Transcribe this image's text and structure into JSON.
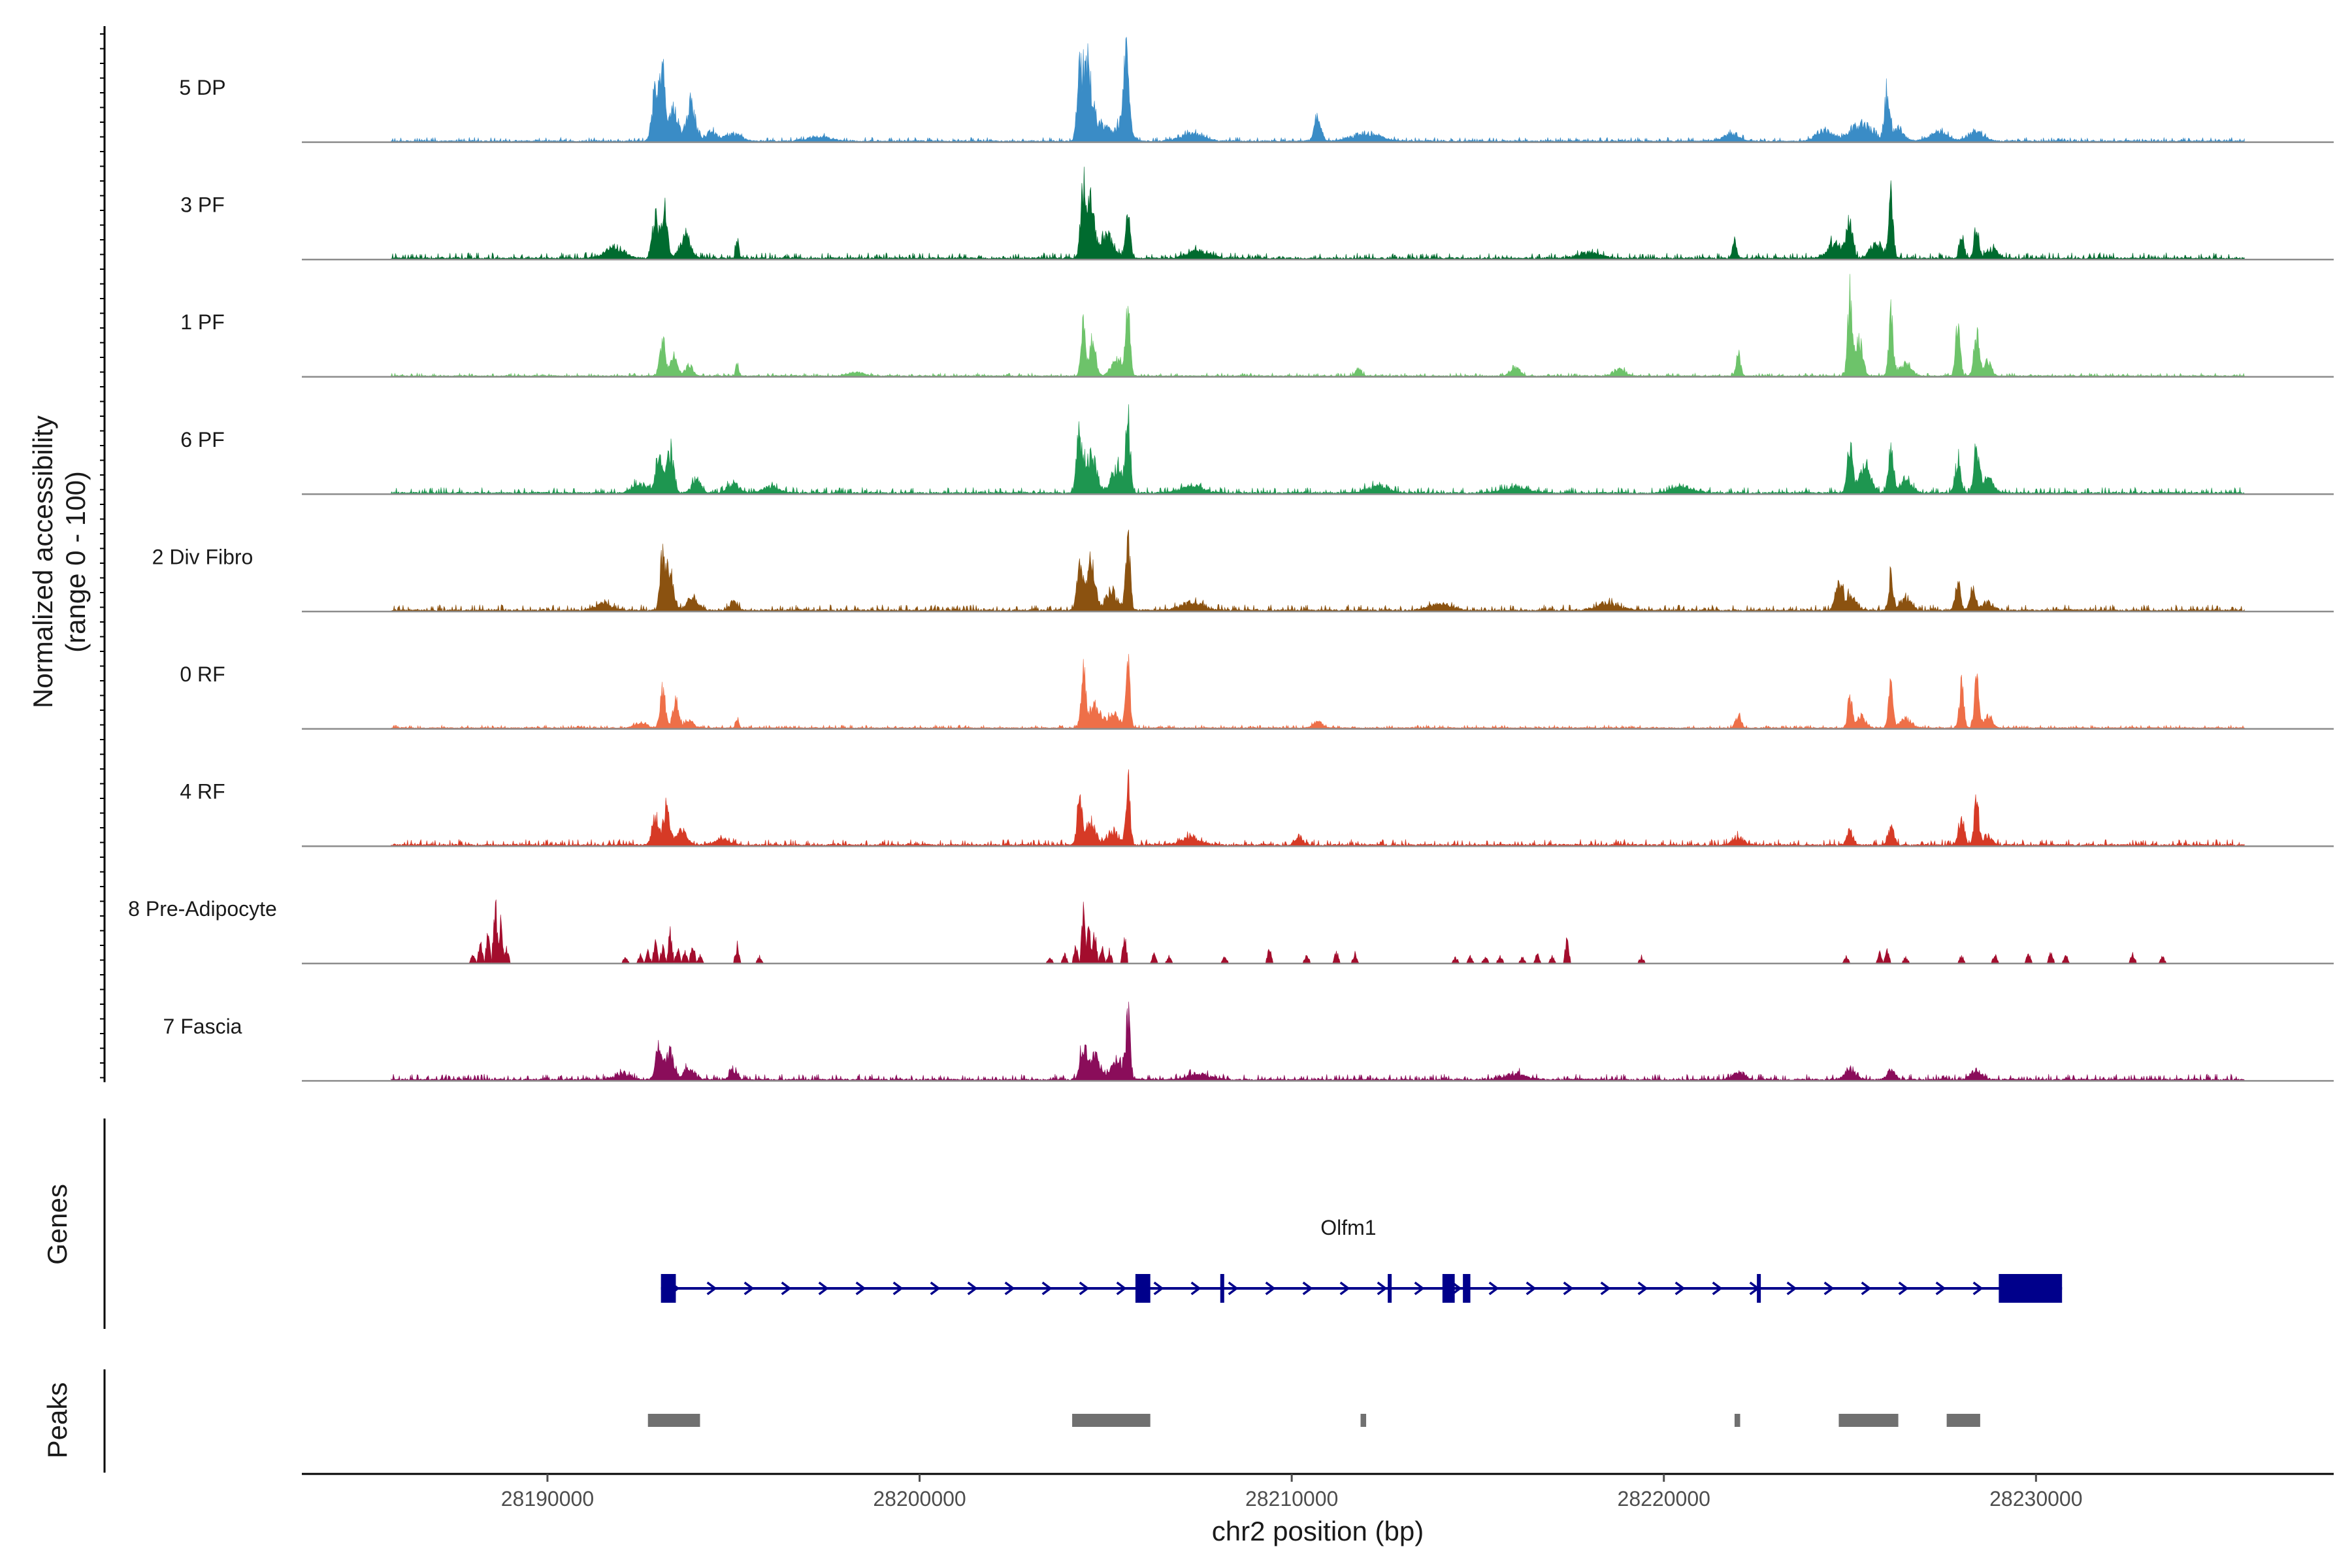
{
  "chart_data": {
    "type": "area",
    "title": "",
    "ylabel": "Normalized accessibility\n(range 0 - 100)",
    "ylabel_lines": [
      "Normalized accessibility",
      "(range 0 - 100)"
    ],
    "xlabel": "chr2 position (bp)",
    "xlim": [
      28183400,
      28238000
    ],
    "ylim": [
      0,
      100
    ],
    "x_ticks": [
      28190000,
      28200000,
      28210000,
      28220000,
      28230000
    ],
    "x_tick_labels": [
      "28190000",
      "28200000",
      "28210000",
      "28220000",
      "28230000"
    ],
    "track_labels": {
      "genes": "Genes",
      "peaks": "Peaks"
    },
    "series": [
      {
        "name": "5 DP",
        "color": "#3a8cc6",
        "noise": 2,
        "peaks": [
          [
            28192900,
            55,
            90
          ],
          [
            28193100,
            72,
            70
          ],
          [
            28193400,
            35,
            110
          ],
          [
            28193850,
            42,
            120
          ],
          [
            28194400,
            10,
            150
          ],
          [
            28195000,
            8,
            200
          ],
          [
            28197300,
            5,
            300
          ],
          [
            28204300,
            60,
            70
          ],
          [
            28204500,
            75,
            110
          ],
          [
            28204800,
            22,
            250
          ],
          [
            28205550,
            85,
            60
          ],
          [
            28205500,
            30,
            150
          ],
          [
            28207300,
            8,
            300
          ],
          [
            28210700,
            28,
            90
          ],
          [
            28212000,
            8,
            400
          ],
          [
            28221800,
            8,
            200
          ],
          [
            28224300,
            12,
            200
          ],
          [
            28225300,
            18,
            300
          ],
          [
            28226000,
            50,
            70
          ],
          [
            28226300,
            15,
            150
          ],
          [
            28227400,
            10,
            250
          ],
          [
            28228400,
            10,
            200
          ]
        ]
      },
      {
        "name": "3 PF",
        "color": "#006b2f",
        "noise": 3,
        "peaks": [
          [
            28191800,
            12,
            250
          ],
          [
            28192900,
            50,
            80
          ],
          [
            28193150,
            55,
            70
          ],
          [
            28193700,
            22,
            150
          ],
          [
            28195100,
            22,
            40
          ],
          [
            28204400,
            80,
            70
          ],
          [
            28204600,
            60,
            80
          ],
          [
            28205000,
            25,
            200
          ],
          [
            28205600,
            55,
            60
          ],
          [
            28207500,
            8,
            300
          ],
          [
            28218000,
            6,
            300
          ],
          [
            28221900,
            15,
            60
          ],
          [
            28224600,
            18,
            200
          ],
          [
            28225000,
            40,
            80
          ],
          [
            28226100,
            70,
            60
          ],
          [
            28225700,
            18,
            150
          ],
          [
            28228000,
            30,
            60
          ],
          [
            28228400,
            35,
            60
          ],
          [
            28228800,
            10,
            150
          ]
        ]
      },
      {
        "name": "1 PF",
        "color": "#6dc36a",
        "noise": 1.5,
        "peaks": [
          [
            28193100,
            35,
            80
          ],
          [
            28193400,
            25,
            90
          ],
          [
            28193800,
            12,
            100
          ],
          [
            28195100,
            15,
            40
          ],
          [
            28198300,
            4,
            200
          ],
          [
            28204400,
            55,
            60
          ],
          [
            28204650,
            40,
            80
          ],
          [
            28205600,
            65,
            60
          ],
          [
            28205300,
            18,
            150
          ],
          [
            28211800,
            8,
            80
          ],
          [
            28216000,
            10,
            120
          ],
          [
            28218800,
            8,
            150
          ],
          [
            28222000,
            25,
            60
          ],
          [
            28225000,
            85,
            60
          ],
          [
            28225250,
            40,
            90
          ],
          [
            28226100,
            65,
            60
          ],
          [
            28226500,
            15,
            150
          ],
          [
            28227900,
            60,
            60
          ],
          [
            28228400,
            45,
            70
          ],
          [
            28228700,
            15,
            100
          ]
        ]
      },
      {
        "name": "6 PF",
        "color": "#1e9650",
        "noise": 3,
        "peaks": [
          [
            28192500,
            10,
            200
          ],
          [
            28193000,
            45,
            80
          ],
          [
            28193300,
            45,
            90
          ],
          [
            28194000,
            15,
            120
          ],
          [
            28195000,
            10,
            150
          ],
          [
            28196000,
            7,
            200
          ],
          [
            28204300,
            60,
            80
          ],
          [
            28204600,
            40,
            150
          ],
          [
            28205600,
            80,
            60
          ],
          [
            28205300,
            30,
            150
          ],
          [
            28207300,
            8,
            300
          ],
          [
            28212300,
            7,
            300
          ],
          [
            28216000,
            7,
            300
          ],
          [
            28220500,
            7,
            300
          ],
          [
            28225000,
            55,
            70
          ],
          [
            28225400,
            30,
            150
          ],
          [
            28226100,
            50,
            70
          ],
          [
            28226500,
            15,
            150
          ],
          [
            28227900,
            35,
            80
          ],
          [
            28228400,
            50,
            70
          ],
          [
            28228700,
            15,
            150
          ]
        ]
      },
      {
        "name": "2 Div Fibro",
        "color": "#8b5210",
        "noise": 3,
        "peaks": [
          [
            28191500,
            8,
            200
          ],
          [
            28193100,
            65,
            70
          ],
          [
            28193300,
            45,
            90
          ],
          [
            28193900,
            15,
            150
          ],
          [
            28195000,
            10,
            100
          ],
          [
            28204300,
            55,
            70
          ],
          [
            28204600,
            50,
            110
          ],
          [
            28205150,
            20,
            150
          ],
          [
            28205600,
            80,
            60
          ],
          [
            28207300,
            8,
            300
          ],
          [
            28214000,
            7,
            300
          ],
          [
            28218500,
            7,
            300
          ],
          [
            28224700,
            28,
            90
          ],
          [
            28225000,
            15,
            150
          ],
          [
            28226100,
            35,
            60
          ],
          [
            28226500,
            12,
            150
          ],
          [
            28227900,
            30,
            70
          ],
          [
            28228300,
            25,
            70
          ],
          [
            28228700,
            8,
            150
          ]
        ]
      },
      {
        "name": "0 RF",
        "color": "#ee6f48",
        "noise": 1.5,
        "peaks": [
          [
            28192500,
            6,
            150
          ],
          [
            28193100,
            40,
            70
          ],
          [
            28193450,
            28,
            80
          ],
          [
            28193800,
            8,
            120
          ],
          [
            28195100,
            10,
            40
          ],
          [
            28204400,
            60,
            60
          ],
          [
            28204700,
            25,
            150
          ],
          [
            28205200,
            15,
            150
          ],
          [
            28205600,
            65,
            60
          ],
          [
            28210700,
            7,
            120
          ],
          [
            28222000,
            15,
            70
          ],
          [
            28225000,
            35,
            60
          ],
          [
            28225300,
            12,
            120
          ],
          [
            28226100,
            45,
            60
          ],
          [
            28226500,
            10,
            150
          ],
          [
            28228000,
            45,
            60
          ],
          [
            28228400,
            50,
            60
          ],
          [
            28228700,
            12,
            120
          ]
        ]
      },
      {
        "name": "4 RF",
        "color": "#d63a26",
        "noise": 3,
        "peaks": [
          [
            28192900,
            30,
            90
          ],
          [
            28193200,
            42,
            80
          ],
          [
            28193600,
            15,
            150
          ],
          [
            28194700,
            6,
            200
          ],
          [
            28204300,
            45,
            70
          ],
          [
            28204600,
            25,
            120
          ],
          [
            28205200,
            15,
            150
          ],
          [
            28205600,
            68,
            60
          ],
          [
            28207300,
            8,
            250
          ],
          [
            28210200,
            10,
            100
          ],
          [
            28222000,
            8,
            150
          ],
          [
            28225000,
            15,
            80
          ],
          [
            28226100,
            20,
            80
          ],
          [
            28228000,
            28,
            80
          ],
          [
            28228400,
            50,
            60
          ],
          [
            28228700,
            10,
            120
          ]
        ]
      },
      {
        "name": "8 Pre-Adipocyte",
        "color": "#a30d2d",
        "noise": 2,
        "spikes": [
          [
            28188000,
            12
          ],
          [
            28188200,
            25
          ],
          [
            28188400,
            35
          ],
          [
            28188600,
            75
          ],
          [
            28188750,
            55
          ],
          [
            28188900,
            20
          ],
          [
            28192100,
            8
          ],
          [
            28192500,
            10
          ],
          [
            28192700,
            15
          ],
          [
            28192900,
            25
          ],
          [
            28193100,
            22
          ],
          [
            28193300,
            40
          ],
          [
            28193500,
            18
          ],
          [
            28193700,
            15
          ],
          [
            28193900,
            30
          ],
          [
            28194100,
            10
          ],
          [
            28195100,
            22
          ],
          [
            28195700,
            8
          ],
          [
            28203500,
            8
          ],
          [
            28203900,
            12
          ],
          [
            28204200,
            25
          ],
          [
            28204400,
            65
          ],
          [
            28204550,
            55
          ],
          [
            28204700,
            40
          ],
          [
            28204900,
            25
          ],
          [
            28205100,
            15
          ],
          [
            28205500,
            40
          ],
          [
            28206300,
            12
          ],
          [
            28206700,
            8
          ],
          [
            28208200,
            8
          ],
          [
            28209400,
            18
          ],
          [
            28210400,
            12
          ],
          [
            28211200,
            15
          ],
          [
            28211700,
            12
          ],
          [
            28214400,
            8
          ],
          [
            28214800,
            8
          ],
          [
            28215200,
            8
          ],
          [
            28215600,
            10
          ],
          [
            28216200,
            8
          ],
          [
            28216600,
            12
          ],
          [
            28217000,
            8
          ],
          [
            28217400,
            30
          ],
          [
            28219400,
            8
          ],
          [
            28224900,
            8
          ],
          [
            28225800,
            12
          ],
          [
            28226000,
            22
          ],
          [
            28226500,
            8
          ],
          [
            28228000,
            10
          ],
          [
            28228900,
            10
          ],
          [
            28229800,
            12
          ],
          [
            28230400,
            15
          ],
          [
            28230800,
            10
          ],
          [
            28232600,
            12
          ],
          [
            28233400,
            8
          ]
        ]
      },
      {
        "name": "7 Fascia",
        "color": "#8a0d5a",
        "noise": 3,
        "peaks": [
          [
            28192000,
            6,
            200
          ],
          [
            28193000,
            35,
            90
          ],
          [
            28193300,
            30,
            100
          ],
          [
            28193800,
            12,
            150
          ],
          [
            28195000,
            10,
            100
          ],
          [
            28204400,
            38,
            80
          ],
          [
            28204700,
            25,
            150
          ],
          [
            28205600,
            65,
            60
          ],
          [
            28205300,
            20,
            150
          ],
          [
            28207500,
            6,
            300
          ],
          [
            28216000,
            6,
            300
          ],
          [
            28222000,
            8,
            150
          ],
          [
            28225000,
            10,
            150
          ],
          [
            28226100,
            12,
            100
          ],
          [
            28228400,
            10,
            150
          ]
        ]
      }
    ],
    "gene": {
      "name": "Olfm1",
      "strand": "+",
      "start": 28193050,
      "end": 28230700,
      "exons": [
        [
          28193050,
          28193450
        ],
        [
          28205800,
          28206200
        ],
        [
          28208080,
          28208180
        ],
        [
          28212580,
          28212680
        ],
        [
          28214050,
          28214380
        ],
        [
          28214600,
          28214800
        ],
        [
          28222500,
          28222580
        ],
        [
          28229000,
          28230700
        ]
      ]
    },
    "peaks_track": [
      [
        28192700,
        28194100
      ],
      [
        28204100,
        28206200
      ],
      [
        28211850,
        28212000
      ],
      [
        28221900,
        28222050
      ],
      [
        28224700,
        28226300
      ],
      [
        28227600,
        28228500
      ]
    ]
  }
}
